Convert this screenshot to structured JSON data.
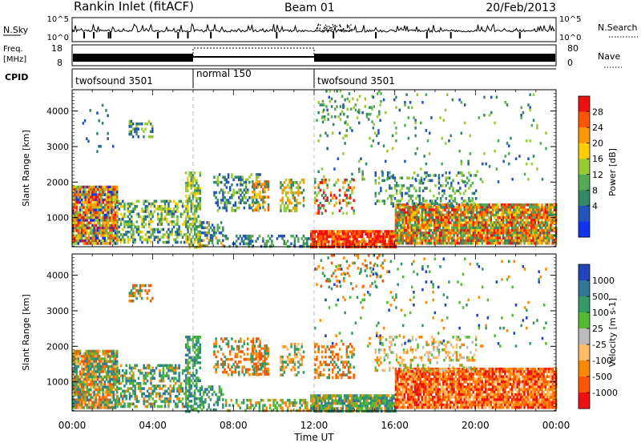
{
  "header": {
    "station": "Rankin Inlet (fitACF)",
    "beam": "Beam 01",
    "date": "20/Feb/2013"
  },
  "top_panel": {
    "nsky_label": "N.Sky",
    "nsky_ticks": [
      "10^5",
      "10^0"
    ],
    "nsearch_label": "N.Search",
    "nsearch_ticks": [
      "10^5",
      "10^0"
    ],
    "freq_label": "Freq.",
    "freq_unit": "[MHz]",
    "freq_ticks": [
      "18",
      "8"
    ],
    "nave_label": "Nave",
    "nave_ticks": [
      "80",
      "0"
    ],
    "cpid_label": "CPID",
    "modes": [
      {
        "name": "twofsound 3501",
        "start_hour": 0,
        "end_hour": 6
      },
      {
        "name": "normal 150",
        "start_hour": 6,
        "end_hour": 12
      },
      {
        "name": "twofsound 3501",
        "start_hour": 12,
        "end_hour": 24
      }
    ]
  },
  "power_scale": {
    "label": "Power [dB]",
    "ticks": [
      "28",
      "24",
      "20",
      "16",
      "12",
      "8",
      "4"
    ],
    "colors": [
      "#ee1111",
      "#ff5500",
      "#ff9900",
      "#ffcc00",
      "#99cc33",
      "#55aa55",
      "#338866",
      "#2255bb",
      "#1133ee"
    ]
  },
  "velocity_scale": {
    "label": "Velocity [m s-1]",
    "ticks": [
      "1000",
      "500",
      "100",
      "25",
      "-25",
      "-100",
      "-500",
      "-1000"
    ],
    "colors": [
      "#2244bb",
      "#337799",
      "#339966",
      "#55bb33",
      "#bbbbbb",
      "#ffbb66",
      "#ff8800",
      "#ff5500",
      "#ee1111"
    ]
  },
  "chart_data": [
    {
      "type": "heatmap",
      "name": "power",
      "ylabel": "Slant Range [km]",
      "xlabel": "",
      "x_ticks": [
        "00:00",
        "04:00",
        "08:00",
        "12:00",
        "16:00",
        "20:00",
        "00:00"
      ],
      "y_ticks": [
        "1000",
        "2000",
        "3000",
        "4000"
      ],
      "x_range_hours": [
        0,
        24
      ],
      "y_range_km": [
        180,
        4600
      ],
      "clusters": [
        {
          "t0": 0.0,
          "t1": 2.2,
          "r0": 300,
          "r1": 1900,
          "density": 0.92,
          "levels": [
            8,
            2,
            0,
            1,
            3,
            4,
            5
          ]
        },
        {
          "t0": 2.2,
          "t1": 5.8,
          "r0": 300,
          "r1": 1500,
          "density": 0.45,
          "levels": [
            5,
            4,
            3,
            6,
            7
          ]
        },
        {
          "t0": 2.8,
          "t1": 4.0,
          "r0": 3300,
          "r1": 3750,
          "density": 0.5,
          "levels": [
            6,
            7,
            4
          ]
        },
        {
          "t0": 0.5,
          "t1": 2.0,
          "r0": 2900,
          "r1": 4200,
          "density": 0.05,
          "levels": [
            7,
            6
          ]
        },
        {
          "t0": 5.6,
          "t1": 6.3,
          "r0": 200,
          "r1": 2300,
          "density": 0.6,
          "levels": [
            3,
            4,
            5,
            6
          ]
        },
        {
          "t0": 6.3,
          "t1": 7.5,
          "r0": 200,
          "r1": 900,
          "density": 0.45,
          "levels": [
            5,
            6,
            7,
            2
          ]
        },
        {
          "t0": 7.0,
          "t1": 9.3,
          "r0": 1200,
          "r1": 2250,
          "density": 0.35,
          "levels": [
            6,
            4,
            7
          ]
        },
        {
          "t0": 8.9,
          "t1": 9.7,
          "r0": 1200,
          "r1": 2050,
          "density": 0.55,
          "levels": [
            1,
            2,
            3,
            6
          ]
        },
        {
          "t0": 10.3,
          "t1": 11.5,
          "r0": 1200,
          "r1": 2100,
          "density": 0.4,
          "levels": [
            4,
            6,
            2
          ]
        },
        {
          "t0": 7.5,
          "t1": 12.0,
          "r0": 200,
          "r1": 520,
          "density": 0.35,
          "levels": [
            6,
            7,
            5
          ]
        },
        {
          "t0": 11.8,
          "t1": 16.0,
          "r0": 200,
          "r1": 650,
          "density": 0.85,
          "levels": [
            0,
            1,
            2,
            0
          ]
        },
        {
          "t0": 12.0,
          "t1": 14.0,
          "r0": 1100,
          "r1": 2100,
          "density": 0.35,
          "levels": [
            4,
            6,
            2,
            0
          ]
        },
        {
          "t0": 16.0,
          "t1": 24.0,
          "r0": 300,
          "r1": 1400,
          "density": 0.9,
          "levels": [
            0,
            1,
            2,
            3,
            5,
            6
          ]
        },
        {
          "t0": 15.0,
          "t1": 20.0,
          "r0": 1350,
          "r1": 2300,
          "density": 0.25,
          "levels": [
            4,
            5,
            6,
            7
          ]
        },
        {
          "t0": 12.3,
          "t1": 15.5,
          "r0": 3600,
          "r1": 4600,
          "density": 0.12,
          "levels": [
            4,
            5,
            6
          ]
        },
        {
          "t0": 12.0,
          "t1": 23.5,
          "r0": 2000,
          "r1": 4500,
          "density": 0.04,
          "levels": [
            6,
            7,
            5,
            4
          ]
        }
      ]
    },
    {
      "type": "heatmap",
      "name": "velocity",
      "ylabel": "Slant Range [km]",
      "xlabel": "Time UT",
      "x_ticks": [
        "00:00",
        "04:00",
        "08:00",
        "12:00",
        "16:00",
        "20:00",
        "00:00"
      ],
      "y_ticks": [
        "1000",
        "2000",
        "3000",
        "4000"
      ],
      "x_range_hours": [
        0,
        24
      ],
      "y_range_km": [
        180,
        4600
      ],
      "clusters": [
        {
          "t0": 0.0,
          "t1": 2.2,
          "r0": 300,
          "r1": 1900,
          "density": 0.9,
          "levels": [
            5,
            6,
            2,
            1,
            3,
            7
          ]
        },
        {
          "t0": 2.2,
          "t1": 5.8,
          "r0": 300,
          "r1": 1500,
          "density": 0.45,
          "levels": [
            2,
            1,
            3,
            6
          ]
        },
        {
          "t0": 2.8,
          "t1": 4.0,
          "r0": 3300,
          "r1": 3750,
          "density": 0.5,
          "levels": [
            6,
            2,
            7
          ]
        },
        {
          "t0": 5.6,
          "t1": 6.3,
          "r0": 200,
          "r1": 2300,
          "density": 0.6,
          "levels": [
            2,
            1,
            3
          ]
        },
        {
          "t0": 6.3,
          "t1": 7.5,
          "r0": 200,
          "r1": 900,
          "density": 0.45,
          "levels": [
            2,
            1,
            3
          ]
        },
        {
          "t0": 7.0,
          "t1": 9.3,
          "r0": 1200,
          "r1": 2250,
          "density": 0.35,
          "levels": [
            6,
            2,
            7
          ]
        },
        {
          "t0": 8.9,
          "t1": 9.7,
          "r0": 1200,
          "r1": 2050,
          "density": 0.55,
          "levels": [
            6,
            7,
            2
          ]
        },
        {
          "t0": 10.3,
          "t1": 11.5,
          "r0": 1200,
          "r1": 2100,
          "density": 0.4,
          "levels": [
            6,
            2,
            5
          ]
        },
        {
          "t0": 7.5,
          "t1": 12.0,
          "r0": 200,
          "r1": 520,
          "density": 0.35,
          "levels": [
            3,
            2,
            6
          ]
        },
        {
          "t0": 11.8,
          "t1": 16.0,
          "r0": 200,
          "r1": 650,
          "density": 0.85,
          "levels": [
            2,
            3,
            1,
            6
          ]
        },
        {
          "t0": 12.0,
          "t1": 14.0,
          "r0": 1100,
          "r1": 2100,
          "density": 0.35,
          "levels": [
            6,
            7,
            2
          ]
        },
        {
          "t0": 16.0,
          "t1": 24.0,
          "r0": 300,
          "r1": 1400,
          "density": 0.9,
          "levels": [
            6,
            7,
            5,
            8
          ]
        },
        {
          "t0": 15.0,
          "t1": 20.0,
          "r0": 1350,
          "r1": 2300,
          "density": 0.25,
          "levels": [
            4,
            5,
            6,
            3
          ]
        },
        {
          "t0": 12.3,
          "t1": 15.5,
          "r0": 3600,
          "r1": 4600,
          "density": 0.12,
          "levels": [
            6,
            7,
            2
          ]
        },
        {
          "t0": 12.0,
          "t1": 23.5,
          "r0": 2000,
          "r1": 4500,
          "density": 0.04,
          "levels": [
            6,
            2,
            0,
            3
          ]
        }
      ]
    }
  ]
}
